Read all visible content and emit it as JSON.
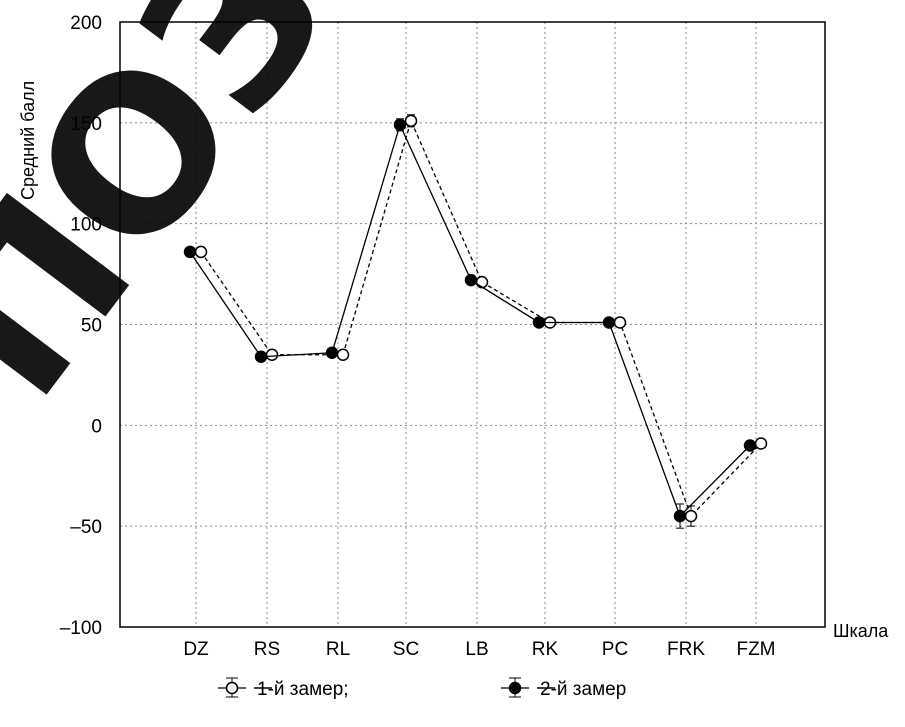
{
  "chart_data": {
    "type": "line",
    "categories": [
      "DZ",
      "RS",
      "RL",
      "SC",
      "LB",
      "RK",
      "PC",
      "FRK",
      "FZM"
    ],
    "series": [
      {
        "name": "1-й замер;",
        "values": [
          86,
          35,
          35,
          151,
          71,
          51,
          51,
          -45,
          -9
        ],
        "error": [
          2,
          2,
          2,
          3,
          2,
          2,
          2,
          5,
          2
        ],
        "line_style": "dashed",
        "marker": "open-circle",
        "color": "#000000"
      },
      {
        "name": "2-й замер",
        "values": [
          86,
          34,
          36,
          149,
          72,
          51,
          51,
          -45,
          -10
        ],
        "error": [
          2,
          2,
          2,
          3,
          2,
          2,
          2,
          6,
          2
        ],
        "line_style": "solid",
        "marker": "filled-circle",
        "color": "#000000"
      }
    ],
    "yticks": [
      "200",
      "150",
      "100",
      "50",
      "0",
      "–50",
      "–100"
    ],
    "ylim": [
      -100,
      200
    ],
    "ylabel": "Средний балл",
    "xlabel": "Шкала",
    "grid": true,
    "legend_position": "bottom"
  },
  "watermark": {
    "text": "ПОЗИТО",
    "color": "#000000"
  }
}
